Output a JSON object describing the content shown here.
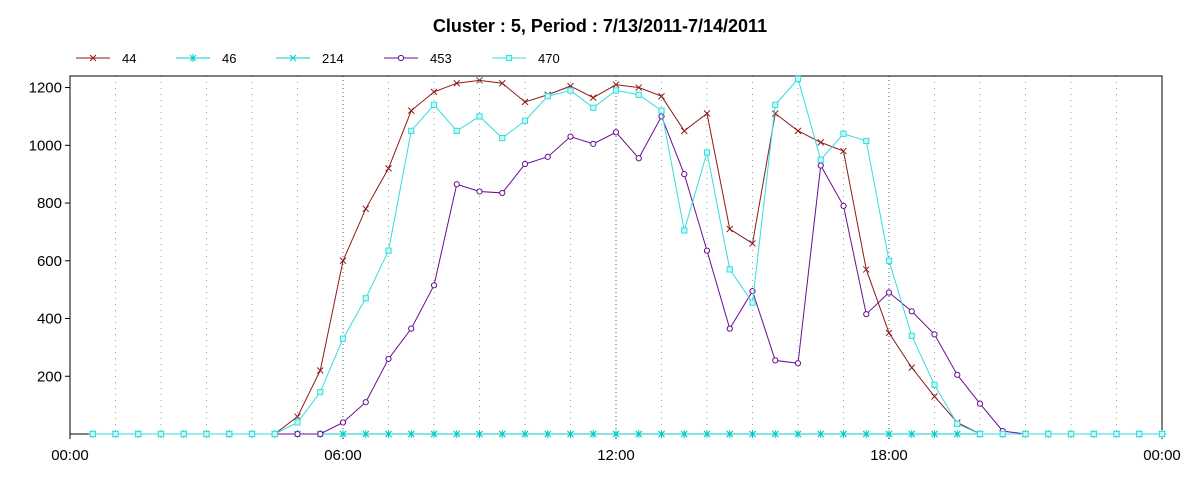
{
  "chart_data": {
    "type": "line",
    "title": "Cluster : 5, Period : 7/13/2011-7/14/2011",
    "xlabel": "",
    "ylabel": "",
    "x_tick_labels": [
      "00:00",
      "06:00",
      "12:00",
      "18:00",
      "00:00"
    ],
    "y_tick_labels": [
      "200",
      "400",
      "600",
      "800",
      "1000",
      "1200"
    ],
    "xlim_hours": [
      0,
      24
    ],
    "ylim": [
      0,
      1240
    ],
    "grid": "dotted vertical lines every hour",
    "legend_position": "top-left",
    "series": [
      {
        "name": "44",
        "color": "#8b1a1a",
        "marker": "x",
        "x": [
          0.5,
          1,
          1.5,
          2,
          2.5,
          3,
          3.5,
          4,
          4.5,
          5,
          5.5,
          6,
          6.5,
          7,
          7.5,
          8,
          8.5,
          9,
          9.5,
          10,
          10.5,
          11,
          11.5,
          12,
          12.5,
          13,
          13.5,
          14,
          14.5,
          15,
          15.5,
          16,
          16.5,
          17,
          17.5,
          18,
          18.5,
          19,
          19.5,
          20,
          20.5,
          21,
          21.5,
          22,
          22.5,
          23,
          23.5,
          24
        ],
        "values": [
          0,
          0,
          0,
          0,
          0,
          0,
          0,
          0,
          0,
          60,
          220,
          600,
          780,
          920,
          1120,
          1185,
          1215,
          1225,
          1215,
          1150,
          1175,
          1205,
          1165,
          1210,
          1200,
          1170,
          1050,
          1110,
          710,
          660,
          1110,
          1050,
          1010,
          980,
          570,
          350,
          230,
          130,
          40,
          0,
          0,
          0,
          0,
          0,
          0,
          0,
          0,
          0
        ]
      },
      {
        "name": "46",
        "color": "#00cccc",
        "marker": "*",
        "x": [
          0.5,
          1,
          1.5,
          2,
          2.5,
          3,
          3.5,
          4,
          4.5,
          5,
          5.5,
          6,
          6.5,
          7,
          7.5,
          8,
          8.5,
          9,
          9.5,
          10,
          10.5,
          11,
          11.5,
          12,
          12.5,
          13,
          13.5,
          14,
          14.5,
          15,
          15.5,
          16,
          16.5,
          17,
          17.5,
          18,
          18.5,
          19,
          19.5,
          20,
          20.5,
          21,
          21.5,
          22,
          22.5,
          23,
          23.5,
          24
        ],
        "values": [
          0,
          0,
          0,
          0,
          0,
          0,
          0,
          0,
          0,
          0,
          0,
          0,
          0,
          0,
          0,
          0,
          0,
          0,
          0,
          0,
          0,
          0,
          0,
          0,
          0,
          0,
          0,
          0,
          0,
          0,
          0,
          0,
          0,
          0,
          0,
          0,
          0,
          0,
          0,
          0,
          0,
          0,
          0,
          0,
          0,
          0,
          0,
          0
        ]
      },
      {
        "name": "214",
        "color": "#00cccc",
        "marker": "x",
        "x": [
          0.5,
          1,
          1.5,
          2,
          2.5,
          3,
          3.5,
          4,
          4.5,
          5,
          5.5,
          6,
          6.5,
          7,
          7.5,
          8,
          8.5,
          9,
          9.5,
          10,
          10.5,
          11,
          11.5,
          12,
          12.5,
          13,
          13.5,
          14,
          14.5,
          15,
          15.5,
          16,
          16.5,
          17,
          17.5,
          18,
          18.5,
          19,
          19.5,
          20,
          20.5,
          21,
          21.5,
          22,
          22.5,
          23,
          23.5,
          24
        ],
        "values": [
          0,
          0,
          0,
          0,
          0,
          0,
          0,
          0,
          0,
          0,
          0,
          0,
          0,
          0,
          0,
          0,
          0,
          0,
          0,
          0,
          0,
          0,
          0,
          0,
          0,
          0,
          0,
          0,
          0,
          0,
          0,
          0,
          0,
          0,
          0,
          0,
          0,
          0,
          0,
          0,
          0,
          0,
          0,
          0,
          0,
          0,
          0,
          0
        ]
      },
      {
        "name": "453",
        "color": "#6a0d91",
        "marker": "o",
        "x": [
          0.5,
          1,
          1.5,
          2,
          2.5,
          3,
          3.5,
          4,
          4.5,
          5,
          5.5,
          6,
          6.5,
          7,
          7.5,
          8,
          8.5,
          9,
          9.5,
          10,
          10.5,
          11,
          11.5,
          12,
          12.5,
          13,
          13.5,
          14,
          14.5,
          15,
          15.5,
          16,
          16.5,
          17,
          17.5,
          18,
          18.5,
          19,
          19.5,
          20,
          20.5,
          21,
          21.5,
          22,
          22.5,
          23,
          23.5,
          24
        ],
        "values": [
          0,
          0,
          0,
          0,
          0,
          0,
          0,
          0,
          0,
          0,
          0,
          40,
          110,
          260,
          365,
          515,
          865,
          840,
          835,
          935,
          960,
          1030,
          1005,
          1045,
          955,
          1100,
          900,
          635,
          365,
          495,
          255,
          245,
          930,
          790,
          415,
          490,
          425,
          345,
          205,
          105,
          10,
          0,
          0,
          0,
          0,
          0,
          0,
          0
        ]
      },
      {
        "name": "470",
        "color": "#33dddd",
        "marker": "s",
        "x": [
          0.5,
          1,
          1.5,
          2,
          2.5,
          3,
          3.5,
          4,
          4.5,
          5,
          5.5,
          6,
          6.5,
          7,
          7.5,
          8,
          8.5,
          9,
          9.5,
          10,
          10.5,
          11,
          11.5,
          12,
          12.5,
          13,
          13.5,
          14,
          14.5,
          15,
          15.5,
          16,
          16.5,
          17,
          17.5,
          18,
          18.5,
          19,
          19.5,
          20,
          20.5,
          21,
          21.5,
          22,
          22.5,
          23,
          23.5,
          24
        ],
        "values": [
          0,
          0,
          0,
          0,
          0,
          0,
          0,
          0,
          0,
          40,
          145,
          330,
          470,
          635,
          1050,
          1140,
          1050,
          1100,
          1025,
          1085,
          1170,
          1190,
          1130,
          1190,
          1175,
          1120,
          705,
          975,
          570,
          455,
          1140,
          1230,
          950,
          1040,
          1015,
          600,
          340,
          170,
          35,
          0,
          0,
          0,
          0,
          0,
          0,
          0,
          0,
          0
        ]
      }
    ]
  }
}
